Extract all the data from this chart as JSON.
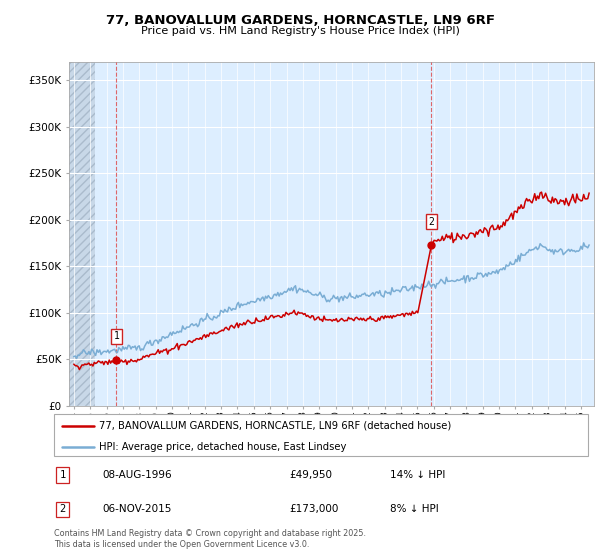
{
  "title": "77, BANOVALLUM GARDENS, HORNCASTLE, LN9 6RF",
  "subtitle": "Price paid vs. HM Land Registry's House Price Index (HPI)",
  "ylabel_ticks": [
    "£0",
    "£50K",
    "£100K",
    "£150K",
    "£200K",
    "£250K",
    "£300K",
    "£350K"
  ],
  "ytick_values": [
    0,
    50000,
    100000,
    150000,
    200000,
    250000,
    300000,
    350000
  ],
  "ylim": [
    0,
    370000
  ],
  "xlim_start": 1993.7,
  "xlim_end": 2025.8,
  "hpi_color": "#7aadd4",
  "price_color": "#cc0000",
  "chart_bg": "#ddeeff",
  "hatch_color": "#bbccdd",
  "marker1_date": 1996.6,
  "marker1_price": 49950,
  "marker2_date": 2015.85,
  "marker2_price": 173000,
  "legend_entry1": "77, BANOVALLUM GARDENS, HORNCASTLE, LN9 6RF (detached house)",
  "legend_entry2": "HPI: Average price, detached house, East Lindsey",
  "table_row1_num": "1",
  "table_row1_date": "08-AUG-1996",
  "table_row1_price": "£49,950",
  "table_row1_hpi": "14% ↓ HPI",
  "table_row2_num": "2",
  "table_row2_date": "06-NOV-2015",
  "table_row2_price": "£173,000",
  "table_row2_hpi": "8% ↓ HPI",
  "footer": "Contains HM Land Registry data © Crown copyright and database right 2025.\nThis data is licensed under the Open Government Licence v3.0.",
  "grid_color": "#ffffff"
}
